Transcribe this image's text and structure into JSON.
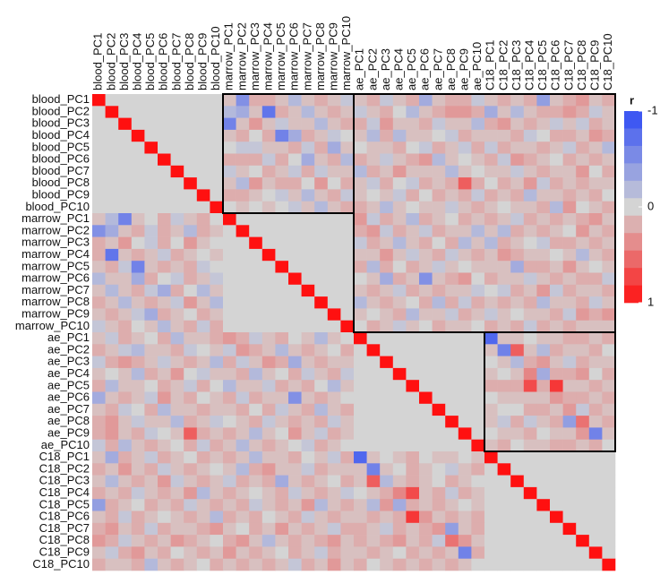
{
  "chart_data": {
    "type": "heatmap",
    "labels": [
      "blood_PC1",
      "blood_PC2",
      "blood_PC3",
      "blood_PC4",
      "blood_PC5",
      "blood_PC6",
      "blood_PC7",
      "blood_PC8",
      "blood_PC9",
      "blood_PC10",
      "marrow_PC1",
      "marrow_PC2",
      "marrow_PC3",
      "marrow_PC4",
      "marrow_PC5",
      "marrow_PC6",
      "marrow_PC7",
      "marrow_PC8",
      "marrow_PC9",
      "marrow_PC10",
      "ae_PC1",
      "ae_PC2",
      "ae_PC3",
      "ae_PC4",
      "ae_PC5",
      "ae_PC6",
      "ae_PC7",
      "ae_PC8",
      "ae_PC9",
      "ae_PC10",
      "C18_PC1",
      "C18_PC2",
      "C18_PC3",
      "C18_PC4",
      "C18_PC5",
      "C18_PC6",
      "C18_PC7",
      "C18_PC8",
      "C18_PC9",
      "C18_PC10"
    ],
    "values": [
      [
        1
      ],
      [
        0,
        1
      ],
      [
        0,
        0,
        1
      ],
      [
        0,
        0,
        0,
        1
      ],
      [
        0,
        0,
        0,
        0,
        1
      ],
      [
        0,
        0,
        0,
        0,
        0,
        1
      ],
      [
        0,
        0,
        0,
        0,
        0,
        0,
        1
      ],
      [
        0,
        0,
        0,
        0,
        0,
        0,
        0,
        1
      ],
      [
        0,
        0,
        0,
        0,
        0,
        0,
        0,
        0,
        1
      ],
      [
        0,
        0,
        0,
        0,
        0,
        0,
        0,
        0,
        0,
        1
      ],
      [
        0.1,
        -0.2,
        -0.6,
        0.1,
        0,
        0.2,
        -0.1,
        0.1,
        0.2,
        0,
        1
      ],
      [
        -0.5,
        -0.3,
        0.1,
        0.2,
        -0.1,
        0.2,
        0.1,
        -0.2,
        0.2,
        0.1,
        0,
        1
      ],
      [
        0.2,
        0.1,
        0.3,
        0,
        -0.1,
        0.2,
        0,
        0.3,
        0.1,
        0,
        0,
        0,
        1
      ],
      [
        0.2,
        -0.7,
        0.1,
        0.2,
        0.1,
        -0.1,
        0.2,
        0.1,
        0,
        0.1,
        0,
        0,
        0,
        1
      ],
      [
        0.1,
        0.2,
        -0.1,
        -0.6,
        0.1,
        0.2,
        0.1,
        0.2,
        -0.1,
        0,
        0,
        0,
        0,
        0,
        1
      ],
      [
        -0.2,
        0.1,
        0.1,
        -0.3,
        0.2,
        0,
        -0.1,
        0.2,
        0.1,
        -0.1,
        0,
        0,
        0,
        0,
        0,
        1
      ],
      [
        0.1,
        -0.2,
        0.1,
        0.2,
        -0.1,
        -0.3,
        0.2,
        0,
        -0.2,
        0.1,
        0,
        0,
        0,
        0,
        0,
        0,
        1
      ],
      [
        0.2,
        0.1,
        -0.2,
        0.1,
        0.2,
        0.1,
        -0.1,
        0.3,
        0.1,
        -0.2,
        0,
        0,
        0,
        0,
        0,
        0,
        0,
        1
      ],
      [
        0.1,
        0.2,
        0.1,
        -0.1,
        -0.3,
        0.2,
        0.1,
        0,
        0.2,
        0.1,
        0,
        0,
        0,
        0,
        0,
        0,
        0,
        0,
        1
      ],
      [
        -0.1,
        0.1,
        0.2,
        0,
        0.1,
        -0.2,
        0.1,
        0.2,
        -0.1,
        0.2,
        0,
        0,
        0,
        0,
        0,
        0,
        0,
        0,
        0,
        1
      ],
      [
        0.1,
        -0.1,
        0.2,
        0.1,
        0,
        0.2,
        -0.2,
        0.1,
        0.1,
        0.2,
        0.3,
        0.2,
        -0.1,
        0.1,
        0.2,
        0,
        0.1,
        -0.2,
        0.1,
        0,
        1
      ],
      [
        0.2,
        0.1,
        -0.1,
        -0.2,
        0.1,
        0.1,
        0.2,
        -0.1,
        0,
        0.1,
        -0.1,
        0.3,
        0.2,
        0.1,
        -0.2,
        0.1,
        0.2,
        0.1,
        0,
        0.2,
        0,
        1
      ],
      [
        -0.1,
        0.2,
        0.3,
        0.2,
        0.1,
        -0.1,
        0.1,
        0.2,
        0.1,
        -0.2,
        0.2,
        -0.1,
        0.1,
        0.3,
        0.2,
        -0.3,
        0.1,
        0.2,
        0.1,
        0.1,
        0,
        0,
        1
      ],
      [
        0.1,
        0,
        0.1,
        -0.2,
        0.2,
        0.1,
        0.3,
        0,
        -0.1,
        0.1,
        0.1,
        0.2,
        -0.2,
        0.1,
        0,
        0.2,
        -0.1,
        0.1,
        0.2,
        -0.1,
        0,
        0,
        0,
        1
      ],
      [
        0.2,
        -0.2,
        0.1,
        0.1,
        0,
        0.2,
        0.1,
        -0.1,
        0.2,
        0,
        -0.2,
        0.1,
        0.1,
        -0.1,
        0.2,
        0.1,
        0.2,
        0,
        -0.2,
        0.1,
        0,
        0,
        0,
        0,
        1
      ],
      [
        -0.3,
        0.1,
        0.2,
        0.1,
        -0.1,
        0.3,
        0.1,
        0.2,
        0,
        0.1,
        0.2,
        -0.1,
        0.2,
        0.1,
        0.1,
        -0.5,
        0.1,
        0.2,
        0.1,
        0,
        0,
        0,
        0,
        0,
        0,
        1
      ],
      [
        0.1,
        0.2,
        -0.1,
        0,
        0.2,
        -0.2,
        0.1,
        0.1,
        0.2,
        0.1,
        0.1,
        0.2,
        0,
        0.2,
        -0.1,
        0.1,
        0.2,
        -0.2,
        0.1,
        0.2,
        0,
        0,
        0,
        0,
        0,
        0,
        1
      ],
      [
        0.2,
        0.3,
        0.1,
        -0.1,
        0.1,
        0.1,
        -0.2,
        0.2,
        0.1,
        -0.1,
        0,
        0.1,
        0.2,
        -0.1,
        0.1,
        0.2,
        0.1,
        0.2,
        -0.1,
        0.1,
        0,
        0,
        0,
        0,
        0,
        0,
        0,
        1
      ],
      [
        0.2,
        0.3,
        0.1,
        0.2,
        -0.1,
        0,
        0.1,
        0.6,
        0.2,
        0.1,
        0.2,
        0.1,
        -0.2,
        0.1,
        0,
        0.3,
        0.1,
        -0.1,
        0.2,
        0.1,
        0,
        0,
        0,
        0,
        0,
        0,
        0,
        0,
        1
      ],
      [
        -0.1,
        0.2,
        -0.2,
        0.1,
        0.2,
        0.1,
        0,
        0.2,
        -0.1,
        0.2,
        0.1,
        -0.2,
        0.1,
        0.2,
        0.1,
        0,
        -0.1,
        0.2,
        0.1,
        0,
        0,
        0,
        0,
        0,
        0,
        0,
        0,
        0,
        0,
        1
      ],
      [
        0.1,
        -0.3,
        0.2,
        0.1,
        -0.1,
        0.2,
        0.1,
        0,
        0.2,
        0.1,
        0.2,
        0.1,
        -0.2,
        0.1,
        0.1,
        0.2,
        0,
        0.1,
        -0.1,
        0.2,
        -0.8,
        0.1,
        0,
        0.1,
        0.2,
        0,
        0.1,
        0.1,
        0,
        0.1,
        1
      ],
      [
        0.2,
        0.1,
        0.3,
        0.1,
        0.2,
        -0.1,
        0.1,
        0.2,
        0.1,
        0,
        0.1,
        -0.2,
        0.2,
        0.3,
        0.1,
        0.1,
        -0.1,
        0.2,
        0.1,
        0.1,
        0.1,
        -0.6,
        0.1,
        0,
        0.2,
        0.1,
        0,
        -0.1,
        0.1,
        0.2,
        0,
        1
      ],
      [
        0.1,
        -0.2,
        0.1,
        0.2,
        0.1,
        0.3,
        -0.1,
        0.1,
        0.2,
        0.1,
        -0.1,
        0.2,
        0.1,
        0.2,
        -0.3,
        0.1,
        0.2,
        0.1,
        0,
        0.2,
        0.1,
        0.6,
        -0.2,
        0.1,
        0.2,
        0.1,
        0,
        0.2,
        0.1,
        0,
        0,
        0,
        1
      ],
      [
        0.2,
        0.1,
        0.2,
        -0.1,
        0.1,
        0.2,
        0.1,
        0.3,
        -0.2,
        0.1,
        0.2,
        0.1,
        0,
        0.1,
        0.2,
        -0.1,
        0.1,
        0.2,
        0.1,
        -0.1,
        0,
        0.1,
        0.2,
        0.4,
        0.7,
        0.1,
        0.2,
        -0.1,
        0.2,
        0.1,
        0,
        0,
        0,
        1
      ],
      [
        -0.4,
        0.2,
        0.1,
        0,
        0.2,
        0.1,
        0.2,
        -0.1,
        0.1,
        0.2,
        0.1,
        0.2,
        -0.1,
        0.1,
        0.2,
        0.1,
        0.3,
        -0.2,
        0.1,
        0.2,
        0.1,
        -0.2,
        0.3,
        -0.3,
        0.2,
        0.1,
        0.2,
        0.1,
        0,
        0.1,
        0,
        0,
        0,
        0,
        1
      ],
      [
        0.1,
        0.2,
        -0.1,
        0.2,
        0.1,
        0,
        0.1,
        0.2,
        0.1,
        -0.2,
        0.2,
        0.1,
        0.2,
        0,
        0.1,
        0.2,
        -0.1,
        0.1,
        0.2,
        0.1,
        0.1,
        0.2,
        0.1,
        0.2,
        0.8,
        0.3,
        0.1,
        0.2,
        0.1,
        0.2,
        0,
        0,
        0,
        0,
        0,
        1
      ],
      [
        0.2,
        0.3,
        0.1,
        0.2,
        -0.1,
        0.2,
        0.1,
        0.1,
        0.2,
        0.3,
        0.1,
        0,
        0.2,
        0.1,
        0.3,
        0.1,
        0.2,
        0.1,
        -0.1,
        0.2,
        0.2,
        0.1,
        -0.1,
        0.2,
        0.1,
        0.2,
        0.3,
        -0.4,
        0.1,
        0.2,
        0,
        0,
        0,
        0,
        0,
        0,
        1
      ],
      [
        0.3,
        0.2,
        -0.1,
        0.1,
        0.2,
        0.1,
        0.3,
        0.2,
        0.1,
        0,
        0.2,
        0.3,
        0.1,
        -0.2,
        0.1,
        0.2,
        0.1,
        0.2,
        0.3,
        0.1,
        0.2,
        0.1,
        0.2,
        0.3,
        0.1,
        0.2,
        -0.1,
        0.5,
        0.3,
        0.1,
        0,
        0,
        0,
        0,
        0,
        0,
        0,
        1
      ],
      [
        0.1,
        -0.1,
        0.2,
        0.3,
        0.1,
        0.2,
        0,
        0.1,
        0.2,
        0.1,
        0.3,
        0.1,
        0.2,
        0.1,
        0,
        0.2,
        0.1,
        -0.1,
        0.2,
        0.1,
        0.1,
        0.2,
        0.1,
        0,
        0.2,
        0.1,
        0.2,
        0.1,
        -0.6,
        0.2,
        0,
        0,
        0,
        0,
        0,
        0,
        0,
        0,
        1
      ],
      [
        0.2,
        0.1,
        0.1,
        0.2,
        -0.2,
        0.1,
        0.2,
        0.1,
        0,
        0.2,
        0.1,
        0.2,
        0.1,
        0.2,
        0.1,
        -0.1,
        0.2,
        0.1,
        0.3,
        0.1,
        0.2,
        0,
        0.1,
        0.2,
        0.1,
        0.2,
        0.1,
        0.2,
        0.1,
        0,
        0,
        0,
        0,
        0,
        0,
        0,
        0,
        0,
        0,
        1
      ]
    ],
    "colorbar": {
      "title": "r",
      "lim": [
        -1,
        1
      ],
      "ticks": [
        -1,
        0,
        1
      ],
      "low_color": "#2f4cf5",
      "mid_color": "#d4d4d4",
      "high_color": "#ff1010"
    }
  }
}
